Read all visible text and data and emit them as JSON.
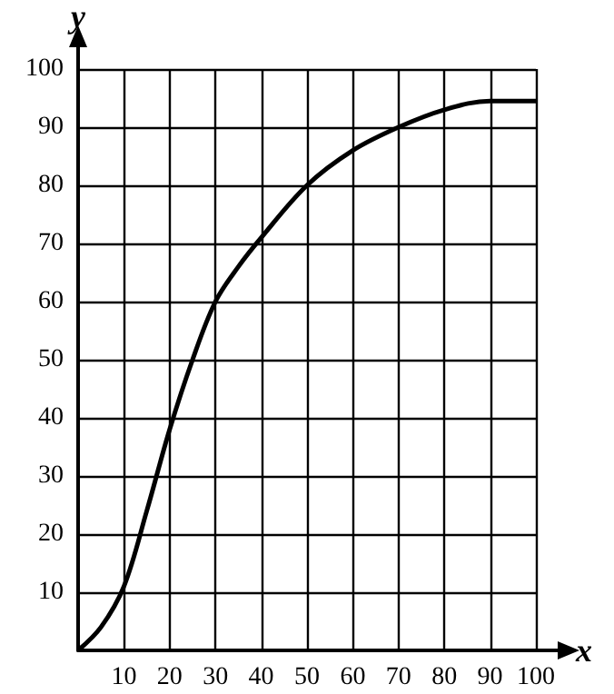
{
  "chart_data": {
    "type": "line",
    "xlabel": "x",
    "ylabel": "y",
    "x": [
      0,
      5,
      10,
      15,
      20,
      25,
      30,
      35,
      40,
      50,
      60,
      70,
      80,
      90,
      100
    ],
    "series": [
      {
        "color": "#000000",
        "values": [
          0,
          4,
          11,
          24,
          38,
          50,
          60,
          66,
          71,
          80,
          86,
          90,
          93,
          94.5,
          94.5
        ]
      }
    ],
    "xlim": [
      0,
      100
    ],
    "ylim": [
      0,
      100
    ],
    "xticks": [
      10,
      20,
      30,
      40,
      50,
      60,
      70,
      80,
      90,
      100
    ],
    "yticks": [
      10,
      20,
      30,
      40,
      50,
      60,
      70,
      80,
      90,
      100
    ],
    "grid": true,
    "marker": "none",
    "line_style": "solid"
  }
}
